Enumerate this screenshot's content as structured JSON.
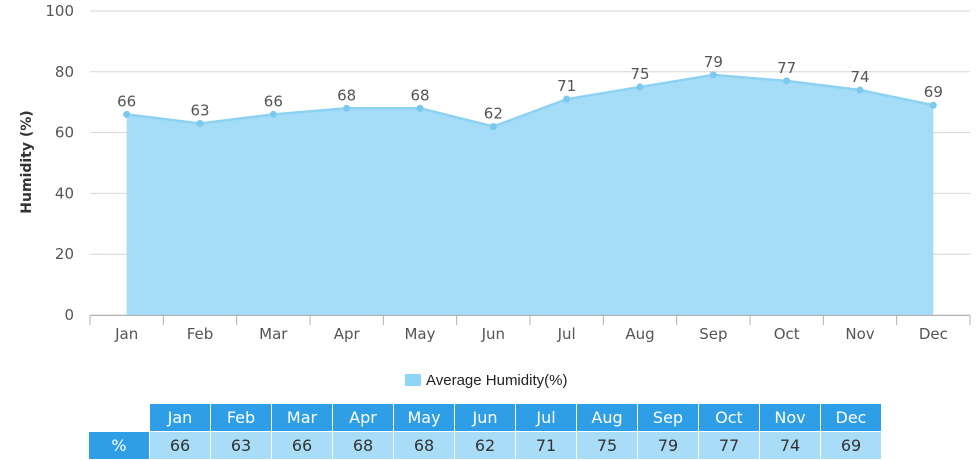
{
  "chart_data": {
    "type": "area",
    "title": "",
    "xlabel": "",
    "ylabel": "Humidity (%)",
    "ylim": [
      0,
      100
    ],
    "yticks": [
      0,
      20,
      40,
      60,
      80,
      100
    ],
    "grid": true,
    "categories": [
      "Jan",
      "Feb",
      "Mar",
      "Apr",
      "May",
      "Jun",
      "Jul",
      "Aug",
      "Sep",
      "Oct",
      "Nov",
      "Dec"
    ],
    "series": [
      {
        "name": "Average Humidity(%)",
        "values": [
          66,
          63,
          66,
          68,
          68,
          62,
          71,
          75,
          79,
          77,
          74,
          69
        ]
      }
    ],
    "legend": "bottom-center",
    "colors": {
      "fill": "#a5dcf8",
      "line": "#8dd2f3",
      "marker": "#7cc8ef"
    }
  },
  "table": {
    "row_label": "%",
    "header_color": "#2e9fe6",
    "cell_color": "#a8dcf7"
  }
}
